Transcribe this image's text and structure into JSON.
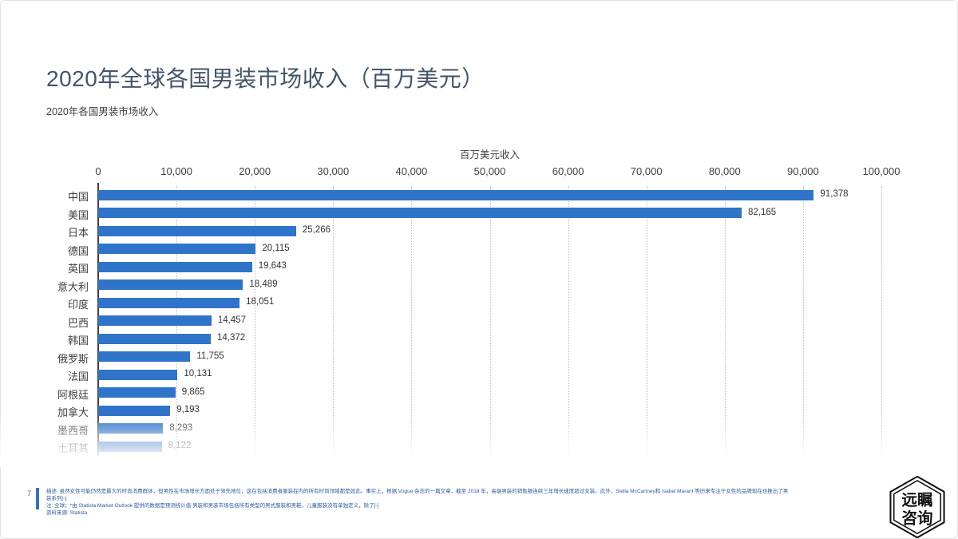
{
  "page": {
    "title": "2020年全球各国男装市场收入（百万美元）",
    "subtitle": "2020年各国男装市场收入",
    "page_number": "7",
    "logo_line1": "远瞩",
    "logo_line2": "咨询"
  },
  "footnote": {
    "description": "描述: 虽然女性可能仍然是最大的时尚消费群体，但男性在市场增长方面处于领先地位，这在包括消费者服装在内的所有时尚领域都是如此。事实上，根据 Vogue 杂志的一篇文章，截至 2018 年，高端男装的销售额连续三年增长速度超过女装。此外，Stella McCartney和 Isabel Marant 等历来专注于女性的品牌现在也推出了男装系列[-]",
    "note": "注: 全球；*由 Statista Market Outlook 提供的数据是预测统计值 男装和男装市场包括所有类型的男式服装和男鞋，儿童服装没有单独定义，除了[-]",
    "source": "资料来源: Statista"
  },
  "chart_data": {
    "type": "bar",
    "orientation": "horizontal",
    "axis_title": "百万美元收入",
    "categories": [
      "中国",
      "美国",
      "日本",
      "德国",
      "英国",
      "意大利",
      "印度",
      "巴西",
      "韩国",
      "俄罗斯",
      "法国",
      "阿根廷",
      "加拿大",
      "墨西哥",
      "土耳其"
    ],
    "values": [
      91378,
      82165,
      25266,
      20115,
      19643,
      18489,
      18051,
      14457,
      14372,
      11755,
      10131,
      9865,
      9193,
      8293,
      8122
    ],
    "xlim": [
      0,
      100000
    ],
    "x_ticks": [
      0,
      10000,
      20000,
      30000,
      40000,
      50000,
      60000,
      70000,
      80000,
      90000,
      100000
    ],
    "bar_color": "#2f74c9",
    "grid": "vertical-dotted",
    "value_labels": true,
    "faded_last_rows": 2
  }
}
